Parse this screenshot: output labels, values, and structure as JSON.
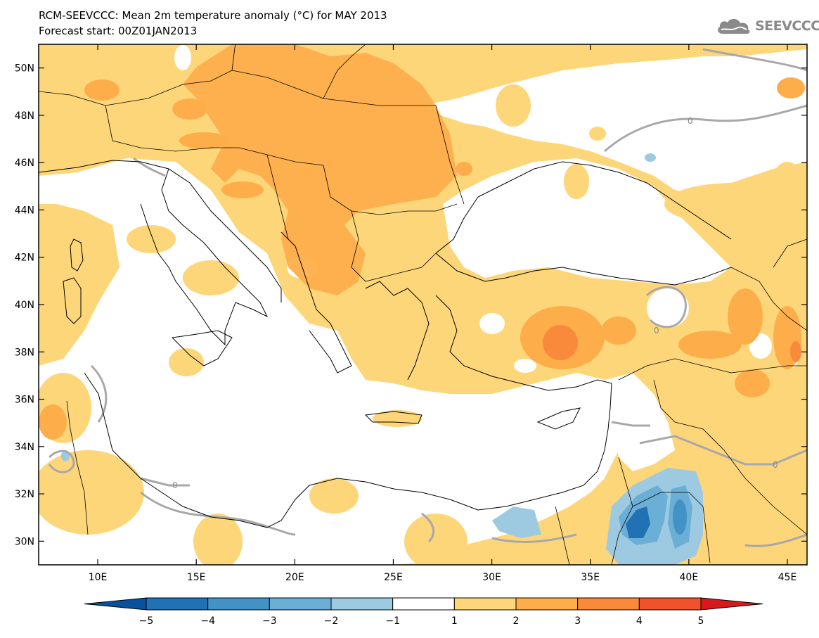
{
  "title": {
    "line1": "RCM-SEEVCCC: Mean 2m temperature anomaly (°C) for MAY 2013",
    "line2": "Forecast start: 00Z01JAN2013"
  },
  "logo": {
    "text": "SEEVCCC",
    "icon": "cloud-icon"
  },
  "map": {
    "lon_range": [
      7,
      46
    ],
    "lat_range": [
      29,
      51
    ],
    "lat_ticks": [
      {
        "value": 50,
        "label": "50N"
      },
      {
        "value": 48,
        "label": "48N"
      },
      {
        "value": 46,
        "label": "46N"
      },
      {
        "value": 44,
        "label": "44N"
      },
      {
        "value": 42,
        "label": "42N"
      },
      {
        "value": 40,
        "label": "40N"
      },
      {
        "value": 38,
        "label": "38N"
      },
      {
        "value": 36,
        "label": "36N"
      },
      {
        "value": 34,
        "label": "34N"
      },
      {
        "value": 32,
        "label": "32N"
      },
      {
        "value": 30,
        "label": "30N"
      }
    ],
    "lon_ticks": [
      {
        "value": 10,
        "label": "10E"
      },
      {
        "value": 15,
        "label": "15E"
      },
      {
        "value": 20,
        "label": "20E"
      },
      {
        "value": 25,
        "label": "25E"
      },
      {
        "value": 30,
        "label": "30E"
      },
      {
        "value": 35,
        "label": "35E"
      },
      {
        "value": 40,
        "label": "40E"
      },
      {
        "value": 45,
        "label": "45E"
      }
    ],
    "contour_label": "0"
  },
  "colorbar": {
    "levels": [
      "−5",
      "−4",
      "−3",
      "−2",
      "−1",
      "1",
      "2",
      "3",
      "4",
      "5"
    ],
    "colors": [
      "#08519c",
      "#2171b5",
      "#4292c6",
      "#6baed6",
      "#9ecae1",
      "#ffffff",
      "#fdd67a",
      "#fdae4b",
      "#f98a3c",
      "#f0522b",
      "#d7191c"
    ]
  }
}
